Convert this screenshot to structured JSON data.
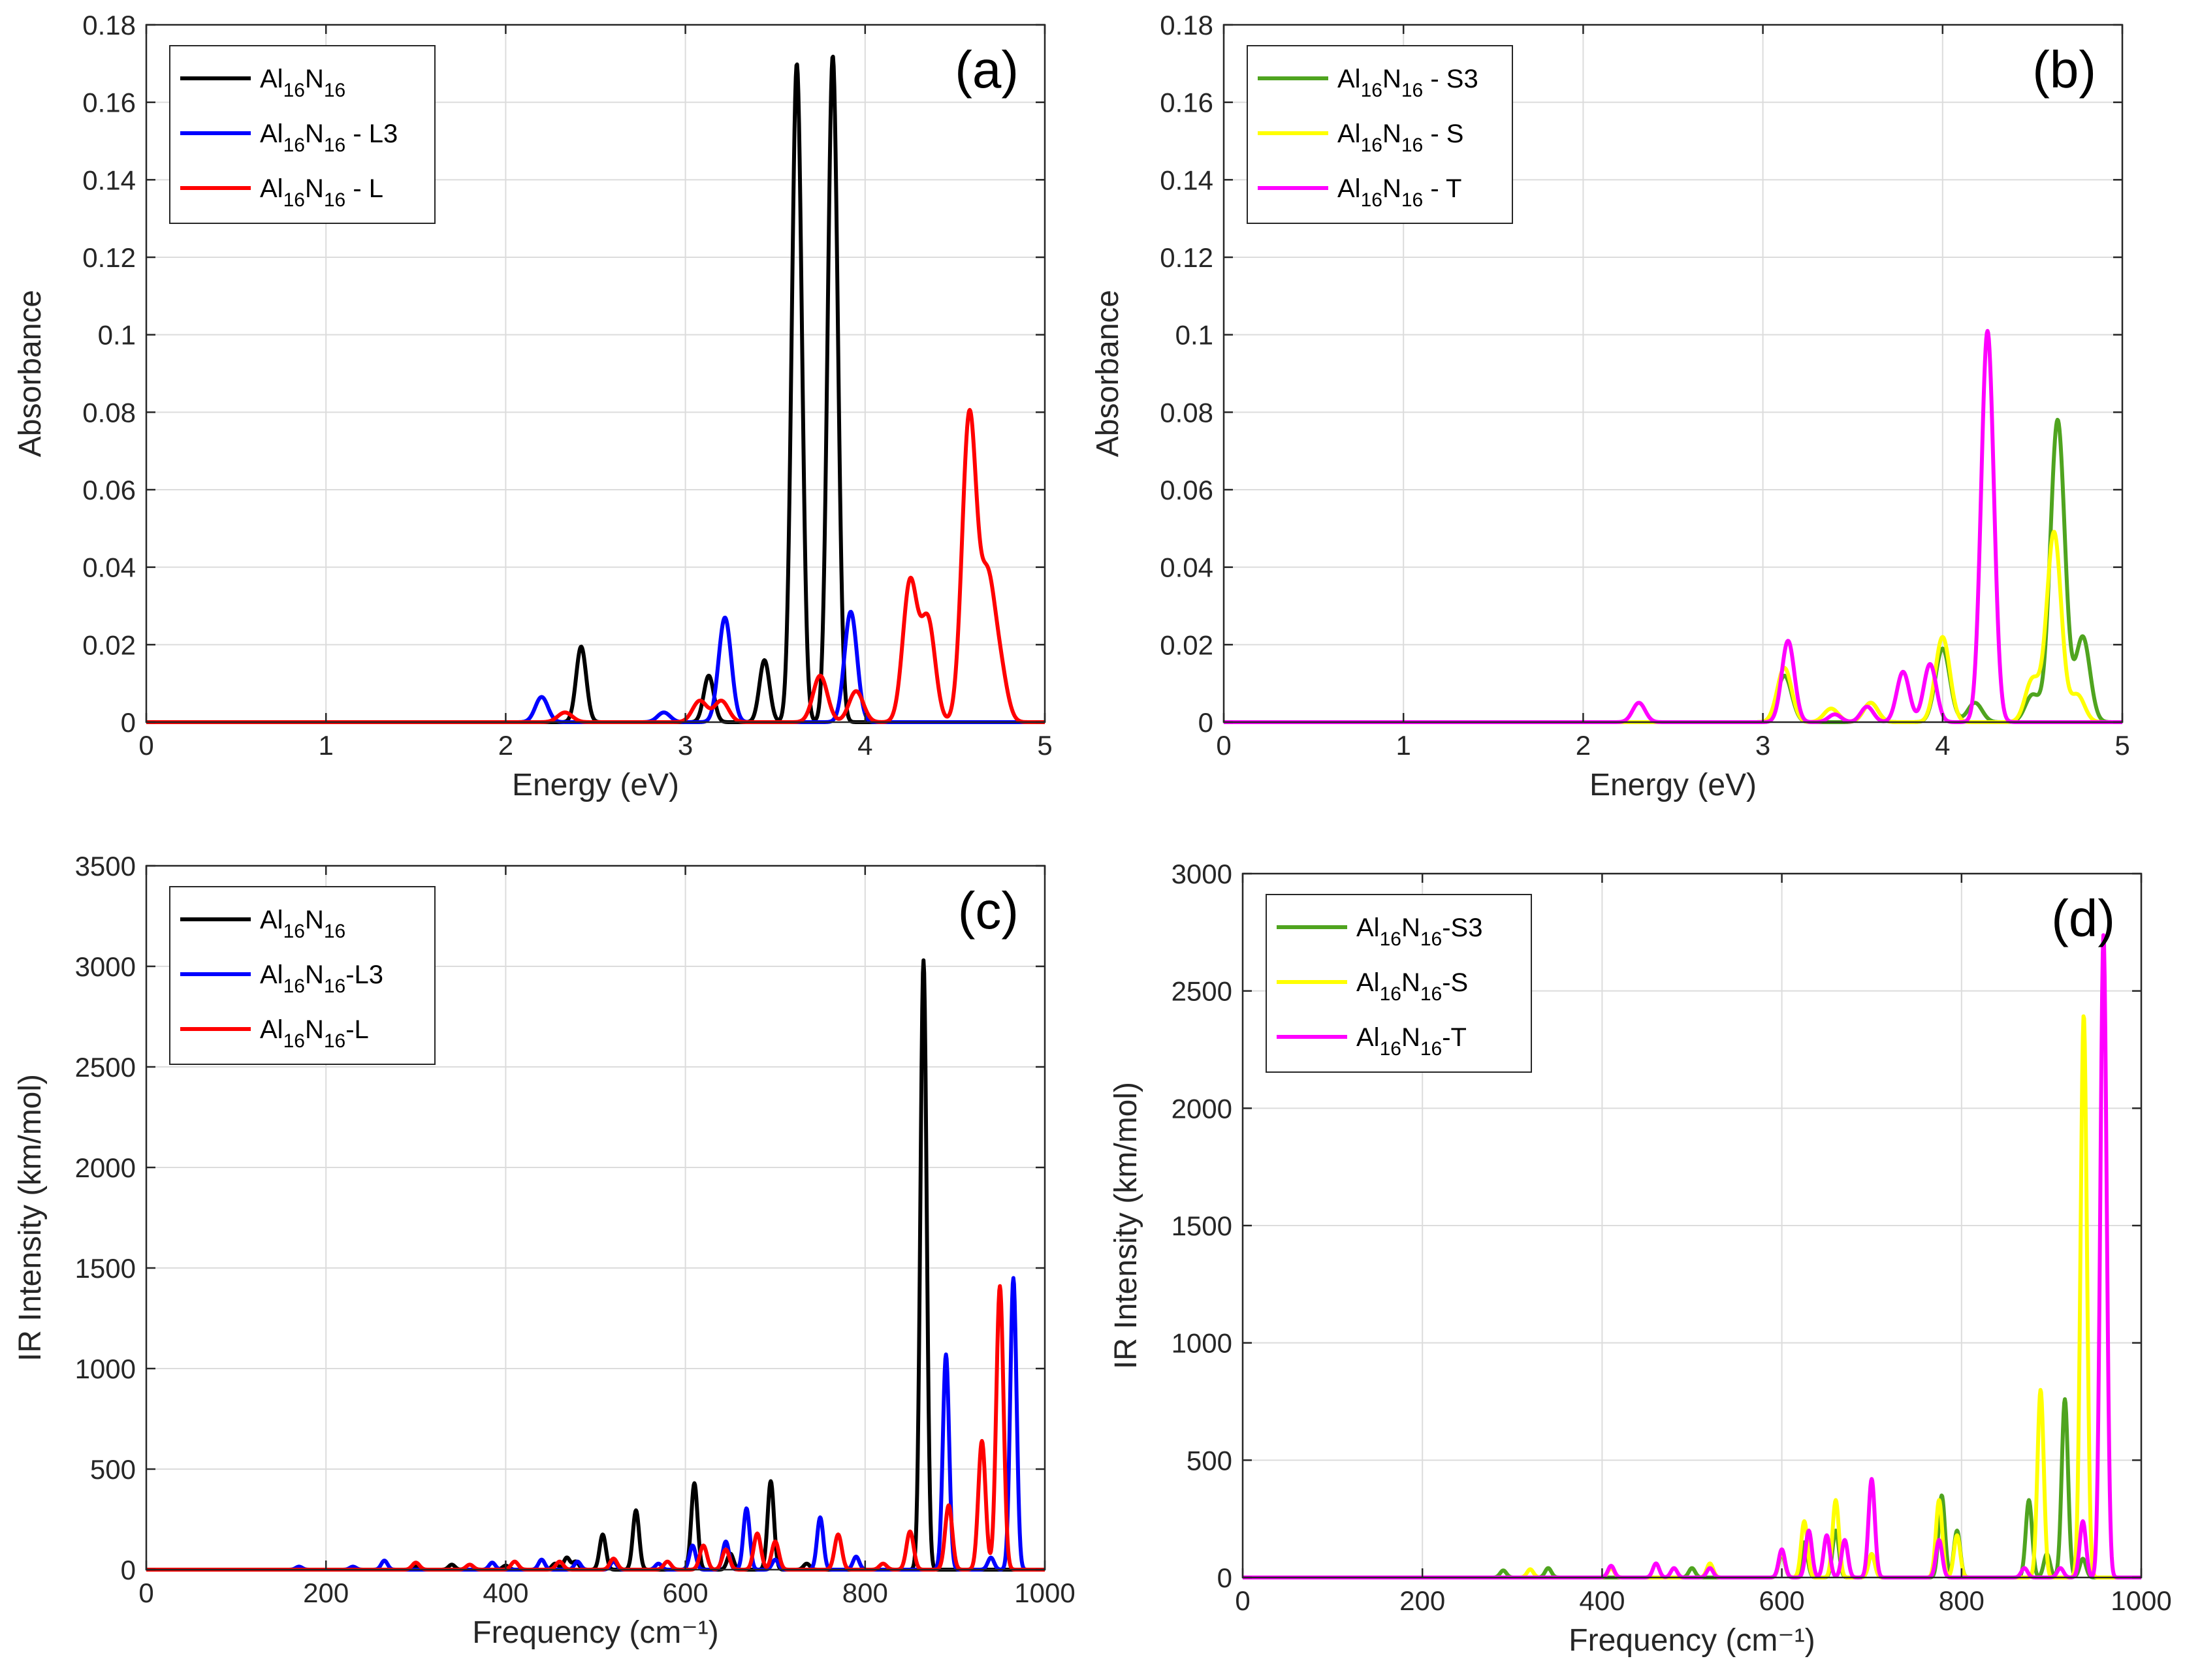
{
  "figure": {
    "background": "#ffffff"
  },
  "chart_data": [
    {
      "id": "a",
      "type": "line",
      "panel_label": "(a)",
      "xlabel": "Energy (eV)",
      "ylabel": "Absorbance",
      "xlim": [
        0,
        5
      ],
      "ylim": [
        0,
        0.18
      ],
      "xticks": [
        0,
        1,
        2,
        3,
        4,
        5
      ],
      "yticks": [
        0,
        0.02,
        0.04,
        0.06,
        0.08,
        0.1,
        0.12,
        0.14,
        0.16,
        0.18
      ],
      "xtick_labels": [
        "0",
        "1",
        "2",
        "3",
        "4",
        "5"
      ],
      "ytick_labels": [
        "0",
        "0.02",
        "0.04",
        "0.06",
        "0.08",
        "0.1",
        "0.12",
        "0.14",
        "0.16",
        "0.18"
      ],
      "grid": true,
      "legend_position": "top-left",
      "series": [
        {
          "base": "Al",
          "sub1": "16",
          "mid": "N",
          "sub2": "16",
          "suffix": "",
          "color": "#000000",
          "width": 0.028,
          "peaks": [
            [
              2.42,
              0.0195
            ],
            [
              3.13,
              0.012
            ],
            [
              3.44,
              0.016
            ],
            [
              3.62,
              0.17
            ],
            [
              3.82,
              0.172
            ]
          ]
        },
        {
          "base": "Al",
          "sub1": "16",
          "mid": "N",
          "sub2": "16",
          "suffix": " - L3",
          "color": "#0000ff",
          "width": 0.035,
          "peaks": [
            [
              2.2,
              0.0065
            ],
            [
              2.88,
              0.0025
            ],
            [
              3.22,
              0.027
            ],
            [
              3.92,
              0.0285
            ]
          ]
        },
        {
          "base": "Al",
          "sub1": "16",
          "mid": "N",
          "sub2": "16",
          "suffix": " - L",
          "color": "#ff0000",
          "width": 0.04,
          "peaks": [
            [
              2.33,
              0.0025
            ],
            [
              3.08,
              0.0055
            ],
            [
              3.2,
              0.0055
            ],
            [
              3.75,
              0.012
            ],
            [
              3.95,
              0.008
            ],
            [
              4.25,
              0.036
            ],
            [
              4.35,
              0.026
            ],
            [
              4.58,
              0.079
            ],
            [
              4.68,
              0.034
            ],
            [
              4.75,
              0.013
            ]
          ]
        }
      ]
    },
    {
      "id": "b",
      "type": "line",
      "panel_label": "(b)",
      "xlabel": "Energy (eV)",
      "ylabel": "Absorbance",
      "xlim": [
        0,
        5
      ],
      "ylim": [
        0,
        0.18
      ],
      "xticks": [
        0,
        1,
        2,
        3,
        4,
        5
      ],
      "yticks": [
        0,
        0.02,
        0.04,
        0.06,
        0.08,
        0.1,
        0.12,
        0.14,
        0.16,
        0.18
      ],
      "xtick_labels": [
        "0",
        "1",
        "2",
        "3",
        "4",
        "5"
      ],
      "ytick_labels": [
        "0",
        "0.02",
        "0.04",
        "0.06",
        "0.08",
        "0.1",
        "0.12",
        "0.14",
        "0.16",
        "0.18"
      ],
      "grid": true,
      "legend_position": "top-left",
      "series": [
        {
          "base": "Al",
          "sub1": "16",
          "mid": "N",
          "sub2": "16",
          "suffix": " - S3",
          "color": "#4fa41f",
          "width": 0.04,
          "peaks": [
            [
              3.12,
              0.012
            ],
            [
              3.6,
              0.005
            ],
            [
              4.0,
              0.019
            ],
            [
              4.18,
              0.005
            ],
            [
              4.5,
              0.007
            ],
            [
              4.64,
              0.078
            ],
            [
              4.78,
              0.022
            ]
          ]
        },
        {
          "base": "Al",
          "sub1": "16",
          "mid": "N",
          "sub2": "16",
          "suffix": " - S",
          "color": "#ffff00",
          "width": 0.04,
          "peaks": [
            [
              3.12,
              0.014
            ],
            [
              3.38,
              0.0035
            ],
            [
              3.6,
              0.005
            ],
            [
              4.0,
              0.022
            ],
            [
              4.5,
              0.011
            ],
            [
              4.62,
              0.049
            ],
            [
              4.75,
              0.007
            ]
          ]
        },
        {
          "base": "Al",
          "sub1": "16",
          "mid": "N",
          "sub2": "16",
          "suffix": " - T",
          "color": "#ff00ff",
          "width": 0.035,
          "peaks": [
            [
              2.31,
              0.005
            ],
            [
              3.14,
              0.021
            ],
            [
              3.4,
              0.002
            ],
            [
              3.58,
              0.004
            ],
            [
              3.78,
              0.013
            ],
            [
              3.93,
              0.015
            ],
            [
              4.25,
              0.101
            ]
          ]
        }
      ]
    },
    {
      "id": "c",
      "type": "line",
      "panel_label": "(c)",
      "xlabel": "Frequency (cm⁻¹)",
      "ylabel": "IR Intensity (km/mol)",
      "xlim": [
        0,
        1000
      ],
      "ylim": [
        0,
        3500
      ],
      "xticks": [
        0,
        200,
        400,
        600,
        800,
        1000
      ],
      "yticks": [
        0,
        500,
        1000,
        1500,
        2000,
        2500,
        3000,
        3500
      ],
      "xtick_labels": [
        "0",
        "200",
        "400",
        "600",
        "800",
        "1000"
      ],
      "ytick_labels": [
        "0",
        "500",
        "1000",
        "1500",
        "2000",
        "2500",
        "3000",
        "3500"
      ],
      "grid": true,
      "legend_position": "top-left",
      "series": [
        {
          "base": "Al",
          "sub1": "16",
          "mid": "N",
          "sub2": "16",
          "suffix": "",
          "color": "#000000",
          "width": 3.5,
          "peaks": [
            [
              300,
              15
            ],
            [
              340,
              25
            ],
            [
              400,
              20
            ],
            [
              455,
              30
            ],
            [
              468,
              60
            ],
            [
              478,
              40
            ],
            [
              508,
              175
            ],
            [
              545,
              295
            ],
            [
              610,
              430
            ],
            [
              650,
              80
            ],
            [
              695,
              440
            ],
            [
              735,
              30
            ],
            [
              865,
              3030
            ]
          ]
        },
        {
          "base": "Al",
          "sub1": "16",
          "mid": "N",
          "sub2": "16",
          "suffix": "-L3",
          "color": "#0000ff",
          "width": 3.5,
          "peaks": [
            [
              170,
              15
            ],
            [
              230,
              15
            ],
            [
              265,
              45
            ],
            [
              385,
              35
            ],
            [
              440,
              50
            ],
            [
              480,
              40
            ],
            [
              520,
              40
            ],
            [
              570,
              30
            ],
            [
              608,
              120
            ],
            [
              645,
              140
            ],
            [
              668,
              305
            ],
            [
              700,
              50
            ],
            [
              750,
              260
            ],
            [
              790,
              65
            ],
            [
              890,
              1070
            ],
            [
              940,
              60
            ],
            [
              965,
              1450
            ]
          ]
        },
        {
          "base": "Al",
          "sub1": "16",
          "mid": "N",
          "sub2": "16",
          "suffix": "-L",
          "color": "#ff0000",
          "width": 4,
          "peaks": [
            [
              300,
              35
            ],
            [
              360,
              25
            ],
            [
              410,
              40
            ],
            [
              460,
              40
            ],
            [
              520,
              55
            ],
            [
              580,
              40
            ],
            [
              620,
              120
            ],
            [
              645,
              100
            ],
            [
              680,
              180
            ],
            [
              700,
              140
            ],
            [
              770,
              175
            ],
            [
              820,
              30
            ],
            [
              850,
              190
            ],
            [
              893,
              320
            ],
            [
              930,
              640
            ],
            [
              950,
              1410
            ]
          ]
        }
      ]
    },
    {
      "id": "d",
      "type": "line",
      "panel_label": "(d)",
      "xlabel": "Frequency (cm⁻¹)",
      "ylabel": "IR Intensity (km/mol)",
      "xlim": [
        0,
        1000
      ],
      "ylim": [
        0,
        3000
      ],
      "xticks": [
        0,
        200,
        400,
        600,
        800,
        1000
      ],
      "yticks": [
        0,
        500,
        1000,
        1500,
        2000,
        2500,
        3000
      ],
      "xtick_labels": [
        "0",
        "200",
        "400",
        "600",
        "800",
        "1000"
      ],
      "ytick_labels": [
        "0",
        "500",
        "1000",
        "1500",
        "2000",
        "2500",
        "3000"
      ],
      "grid": true,
      "legend_position": "top-left",
      "series": [
        {
          "base": "Al",
          "sub1": "16",
          "mid": "N",
          "sub2": "16",
          "suffix": "-S3",
          "color": "#4fa41f",
          "width": 3.5,
          "peaks": [
            [
              290,
              30
            ],
            [
              340,
              40
            ],
            [
              500,
              40
            ],
            [
              600,
              100
            ],
            [
              625,
              150
            ],
            [
              660,
              200
            ],
            [
              700,
              100
            ],
            [
              778,
              350
            ],
            [
              795,
              200
            ],
            [
              875,
              330
            ],
            [
              895,
              100
            ],
            [
              915,
              760
            ],
            [
              935,
              80
            ]
          ]
        },
        {
          "base": "Al",
          "sub1": "16",
          "mid": "N",
          "sub2": "16",
          "suffix": "-S",
          "color": "#ffff00",
          "width": 3.5,
          "peaks": [
            [
              320,
              35
            ],
            [
              410,
              40
            ],
            [
              520,
              60
            ],
            [
              600,
              110
            ],
            [
              625,
              240
            ],
            [
              660,
              330
            ],
            [
              700,
              100
            ],
            [
              775,
              330
            ],
            [
              795,
              180
            ],
            [
              888,
              800
            ],
            [
              936,
              2400
            ]
          ]
        },
        {
          "base": "Al",
          "sub1": "16",
          "mid": "N",
          "sub2": "16",
          "suffix": "-T",
          "color": "#ff00ff",
          "width": 3.5,
          "peaks": [
            [
              410,
              50
            ],
            [
              460,
              60
            ],
            [
              480,
              40
            ],
            [
              520,
              40
            ],
            [
              600,
              120
            ],
            [
              630,
              200
            ],
            [
              650,
              180
            ],
            [
              670,
              160
            ],
            [
              700,
              420
            ],
            [
              775,
              160
            ],
            [
              870,
              40
            ],
            [
              910,
              40
            ],
            [
              935,
              240
            ],
            [
              958,
              2740
            ]
          ]
        }
      ]
    }
  ]
}
